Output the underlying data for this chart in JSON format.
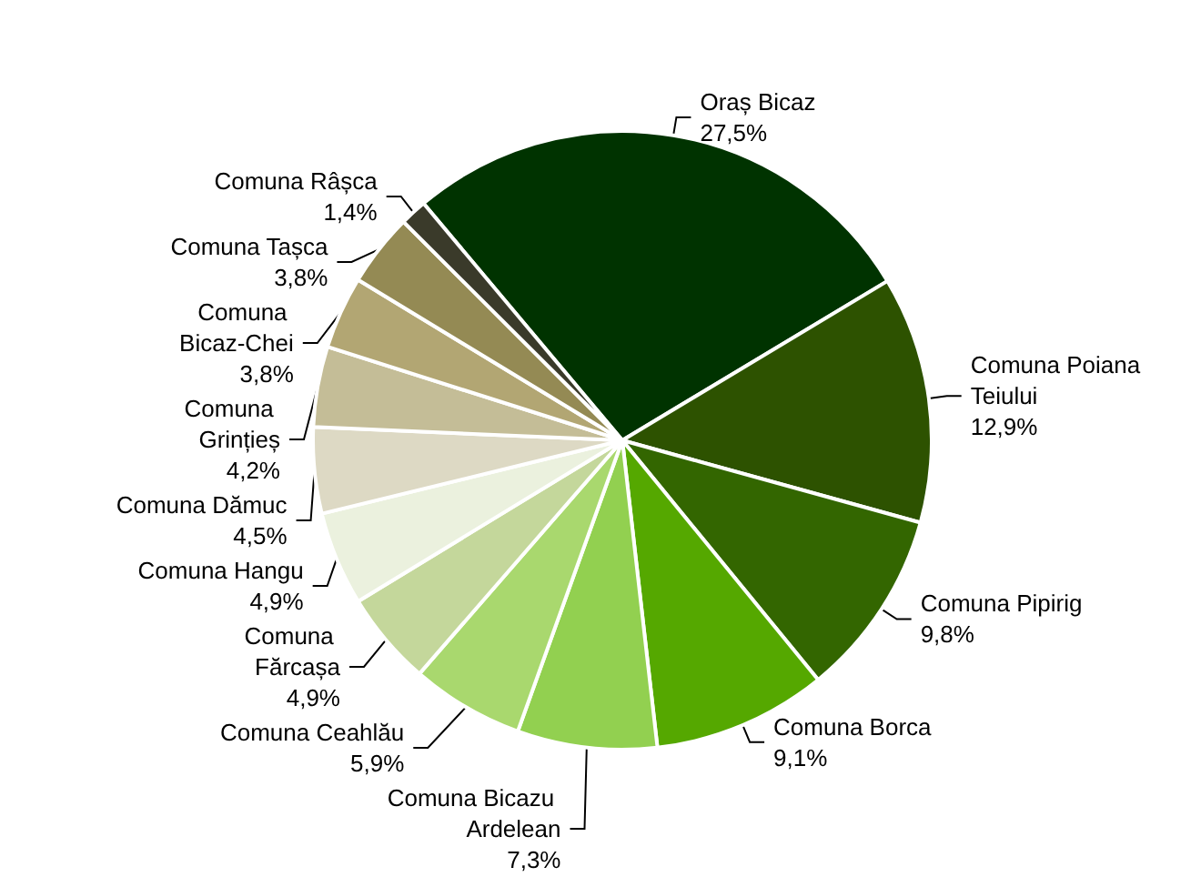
{
  "chart_data": {
    "type": "pie",
    "categories": [
      "Oraș Bicaz",
      "Comuna Poiana Teiului",
      "Comuna Pipirig",
      "Comuna Borca",
      "Comuna Bicazu Ardelean",
      "Comuna Ceahlău",
      "Comuna Fărcașa",
      "Comuna Hangu",
      "Comuna Dămuc",
      "Comuna Grințieș",
      "Comuna Bicaz-Chei",
      "Comuna Tașca",
      "Comuna Râșca"
    ],
    "values": [
      27.5,
      12.9,
      9.8,
      9.1,
      7.3,
      5.9,
      4.9,
      4.9,
      4.5,
      4.2,
      3.8,
      3.8,
      1.4
    ],
    "colors": [
      "#003300",
      "#2d5200",
      "#336600",
      "#55a800",
      "#92d050",
      "#a9d86e",
      "#c4d79b",
      "#ebf1de",
      "#ddd9c4",
      "#c4bd97",
      "#b2a673",
      "#948a54",
      "#3a3a2a"
    ],
    "value_labels": [
      "27,5%",
      "12,9%",
      "9,8%",
      "9,1%",
      "7,3%",
      "5,9%",
      "4,9%",
      "4,9%",
      "4,5%",
      "4,2%",
      "3,8%",
      "3,8%",
      "1,4%"
    ],
    "legend": false
  }
}
